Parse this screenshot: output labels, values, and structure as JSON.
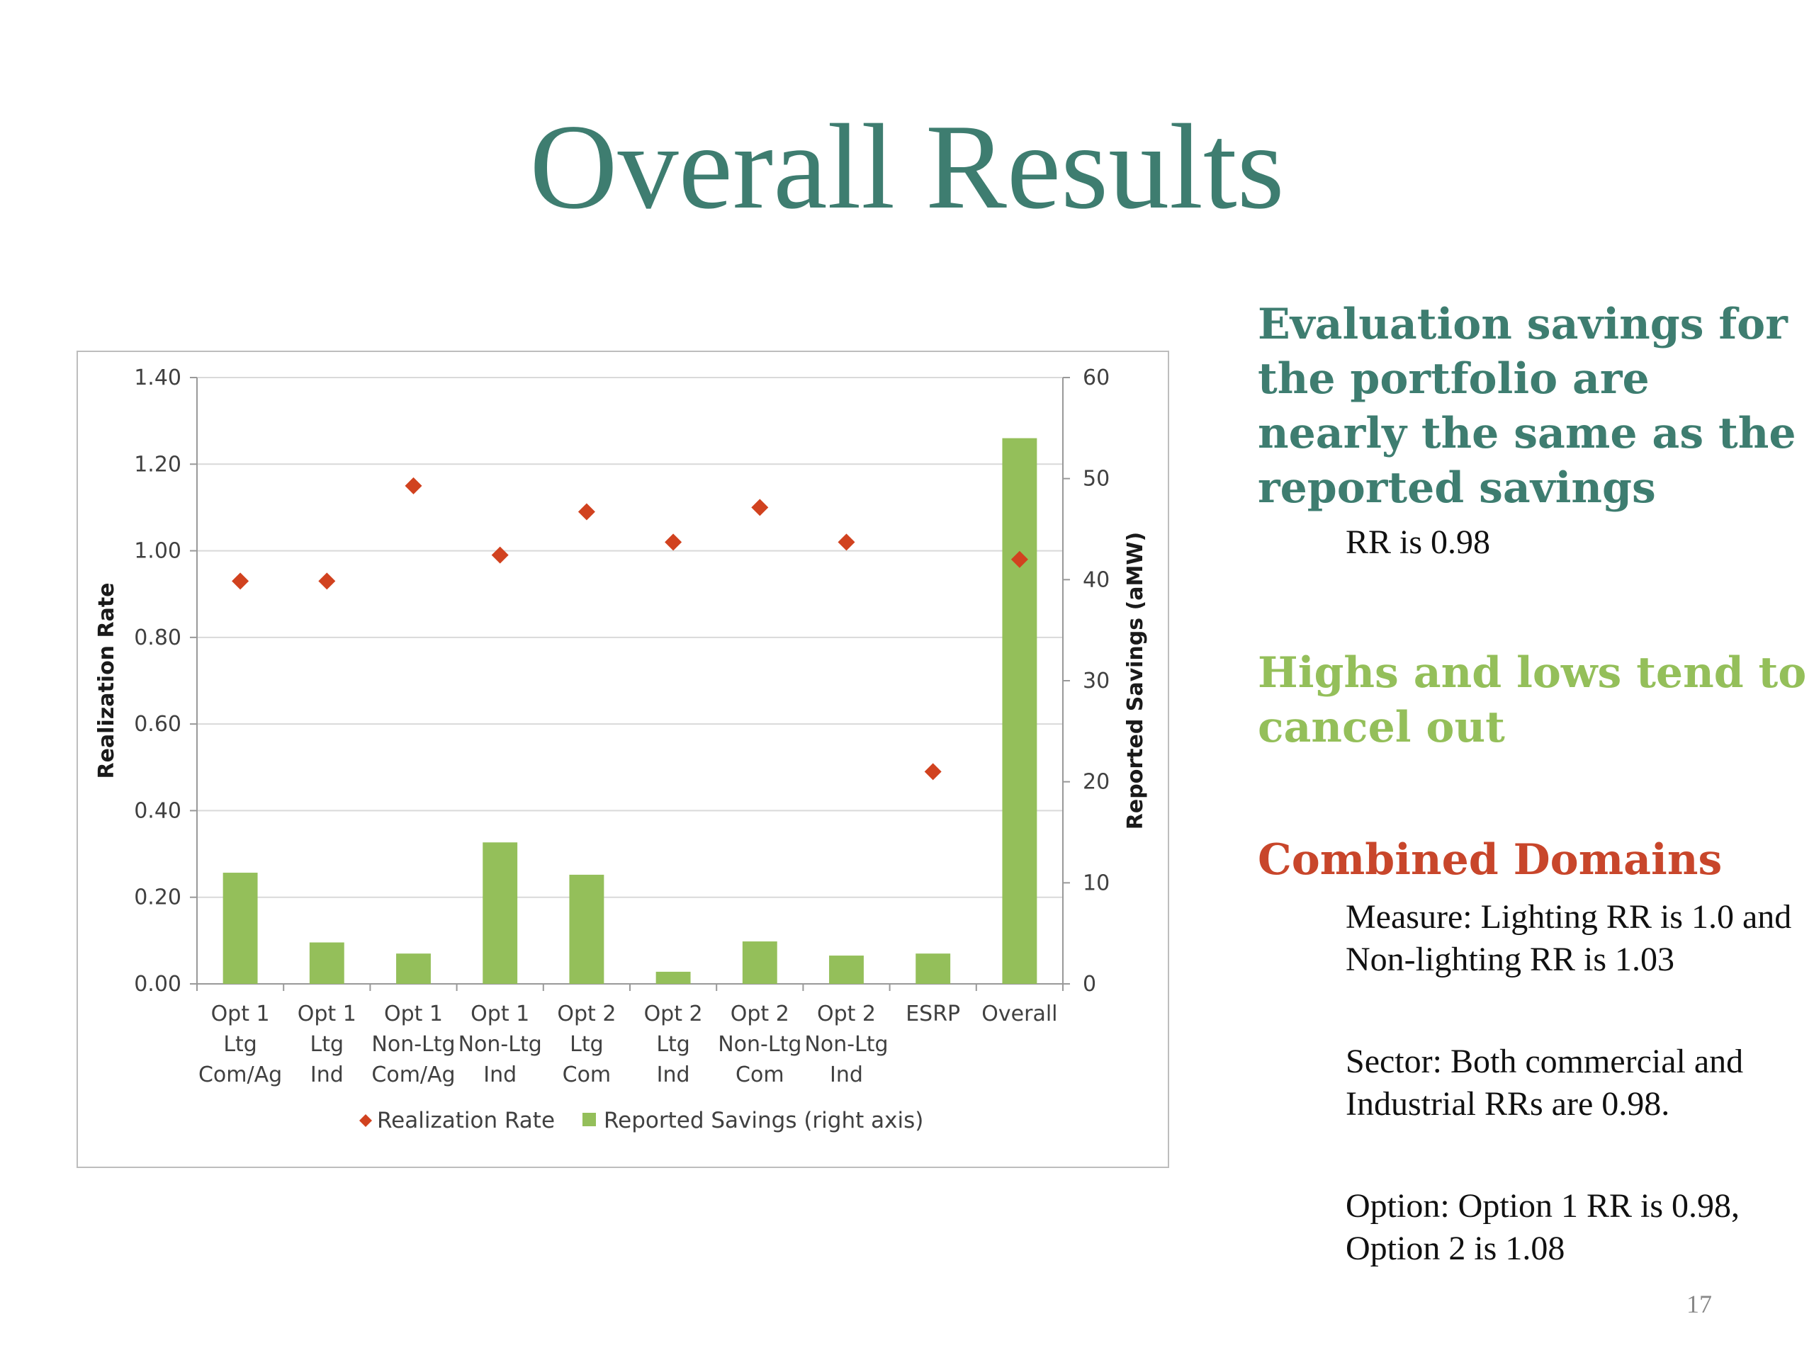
{
  "slide": {
    "title": "Overall Results",
    "page_number": "17"
  },
  "sidebar": {
    "block1": {
      "heading": "Evaluation savings for the portfolio are nearly the same as the reported savings",
      "note": "RR is 0.98"
    },
    "block2": {
      "heading": "Highs and lows tend to cancel out"
    },
    "block3": {
      "heading": "Combined Domains",
      "measure": "Measure:  Lighting RR is 1.0 and Non-lighting RR is 1.03",
      "sector": "Sector:  Both commercial and Industrial RRs are 0.98.",
      "option": "Option:  Option 1 RR is 0.98, Option 2 is 1.08"
    }
  },
  "colors": {
    "title": "#3e7d70",
    "heading_teal": "#3e7d70",
    "heading_green": "#94bf5a",
    "heading_red": "#c8462b",
    "bar": "#94bf5a",
    "marker": "#d1421f",
    "gridline": "#d9d9d9"
  },
  "chart_data": {
    "type": "bar",
    "categories": [
      [
        "Opt 1",
        "Ltg",
        "Com/Ag"
      ],
      [
        "Opt 1",
        "Ltg",
        "Ind"
      ],
      [
        "Opt 1",
        "Non-Ltg",
        "Com/Ag"
      ],
      [
        "Opt 1",
        "Non-Ltg",
        "Ind"
      ],
      [
        "Opt 2",
        "Ltg",
        "Com"
      ],
      [
        "Opt 2",
        "Ltg",
        "Ind"
      ],
      [
        "Opt 2",
        "Non-Ltg",
        "Com"
      ],
      [
        "Opt 2",
        "Non-Ltg",
        "Ind"
      ],
      [
        "ESRP"
      ],
      [
        "Overall"
      ]
    ],
    "series": [
      {
        "name": "Reported Savings (right axis)",
        "type": "bar",
        "axis": "right",
        "values": [
          11.0,
          4.1,
          3.0,
          14.0,
          10.8,
          1.2,
          4.2,
          2.8,
          3.0,
          54.0
        ]
      },
      {
        "name": "Realization Rate",
        "type": "scatter",
        "axis": "left",
        "marker": "diamond",
        "values": [
          0.93,
          0.93,
          1.15,
          0.99,
          1.09,
          1.02,
          1.1,
          1.02,
          0.49,
          0.98
        ]
      }
    ],
    "y_left": {
      "label": "Realization Rate",
      "ylim": [
        0,
        1.4
      ],
      "ticks": [
        "0.00",
        "0.20",
        "0.40",
        "0.60",
        "0.80",
        "1.00",
        "1.20",
        "1.40"
      ]
    },
    "y_right": {
      "label": "Reported Savings (aMW)",
      "ylim": [
        0,
        60
      ],
      "ticks": [
        "0",
        "10",
        "20",
        "30",
        "40",
        "50",
        "60"
      ]
    },
    "grid": true,
    "legend": "bottom"
  }
}
